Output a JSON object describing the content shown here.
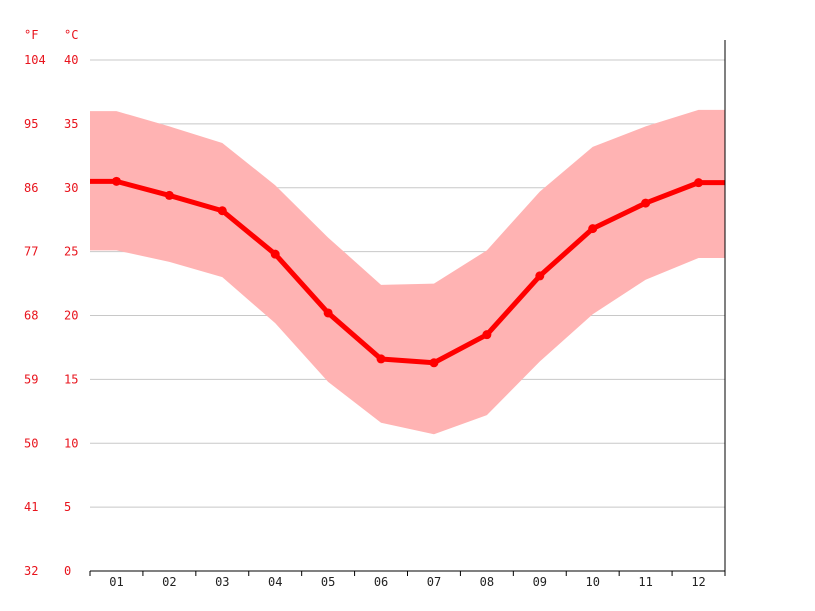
{
  "chart_data": {
    "type": "line",
    "units": {
      "fahrenheit": "°F",
      "celsius": "°C"
    },
    "y_ticks_c": [
      0,
      5,
      10,
      15,
      20,
      25,
      30,
      35,
      40
    ],
    "y_ticks_f": [
      32,
      41,
      50,
      59,
      68,
      77,
      86,
      95,
      104
    ],
    "ylim": [
      0,
      40
    ],
    "categories": [
      "01",
      "02",
      "03",
      "04",
      "05",
      "06",
      "07",
      "08",
      "09",
      "10",
      "11",
      "12"
    ],
    "series": [
      {
        "values": [
          30.5,
          29.4,
          28.2,
          24.8,
          20.2,
          16.6,
          16.3,
          18.5,
          23.1,
          26.8,
          28.8,
          30.4
        ]
      }
    ],
    "range_band": {
      "max": [
        36.0,
        34.8,
        33.5,
        30.2,
        26.1,
        22.4,
        22.5,
        25.1,
        29.7,
        33.2,
        34.8,
        36.1
      ],
      "min": [
        25.1,
        24.2,
        23.0,
        19.4,
        14.8,
        11.6,
        10.7,
        12.2,
        16.4,
        20.1,
        22.8,
        24.5
      ]
    },
    "grid": true,
    "colors": {
      "line": "#ff0000",
      "band": "#ffb3b3",
      "grid": "#c8c8c8",
      "axis": "#000000",
      "tick_text": "#e8141d"
    }
  }
}
